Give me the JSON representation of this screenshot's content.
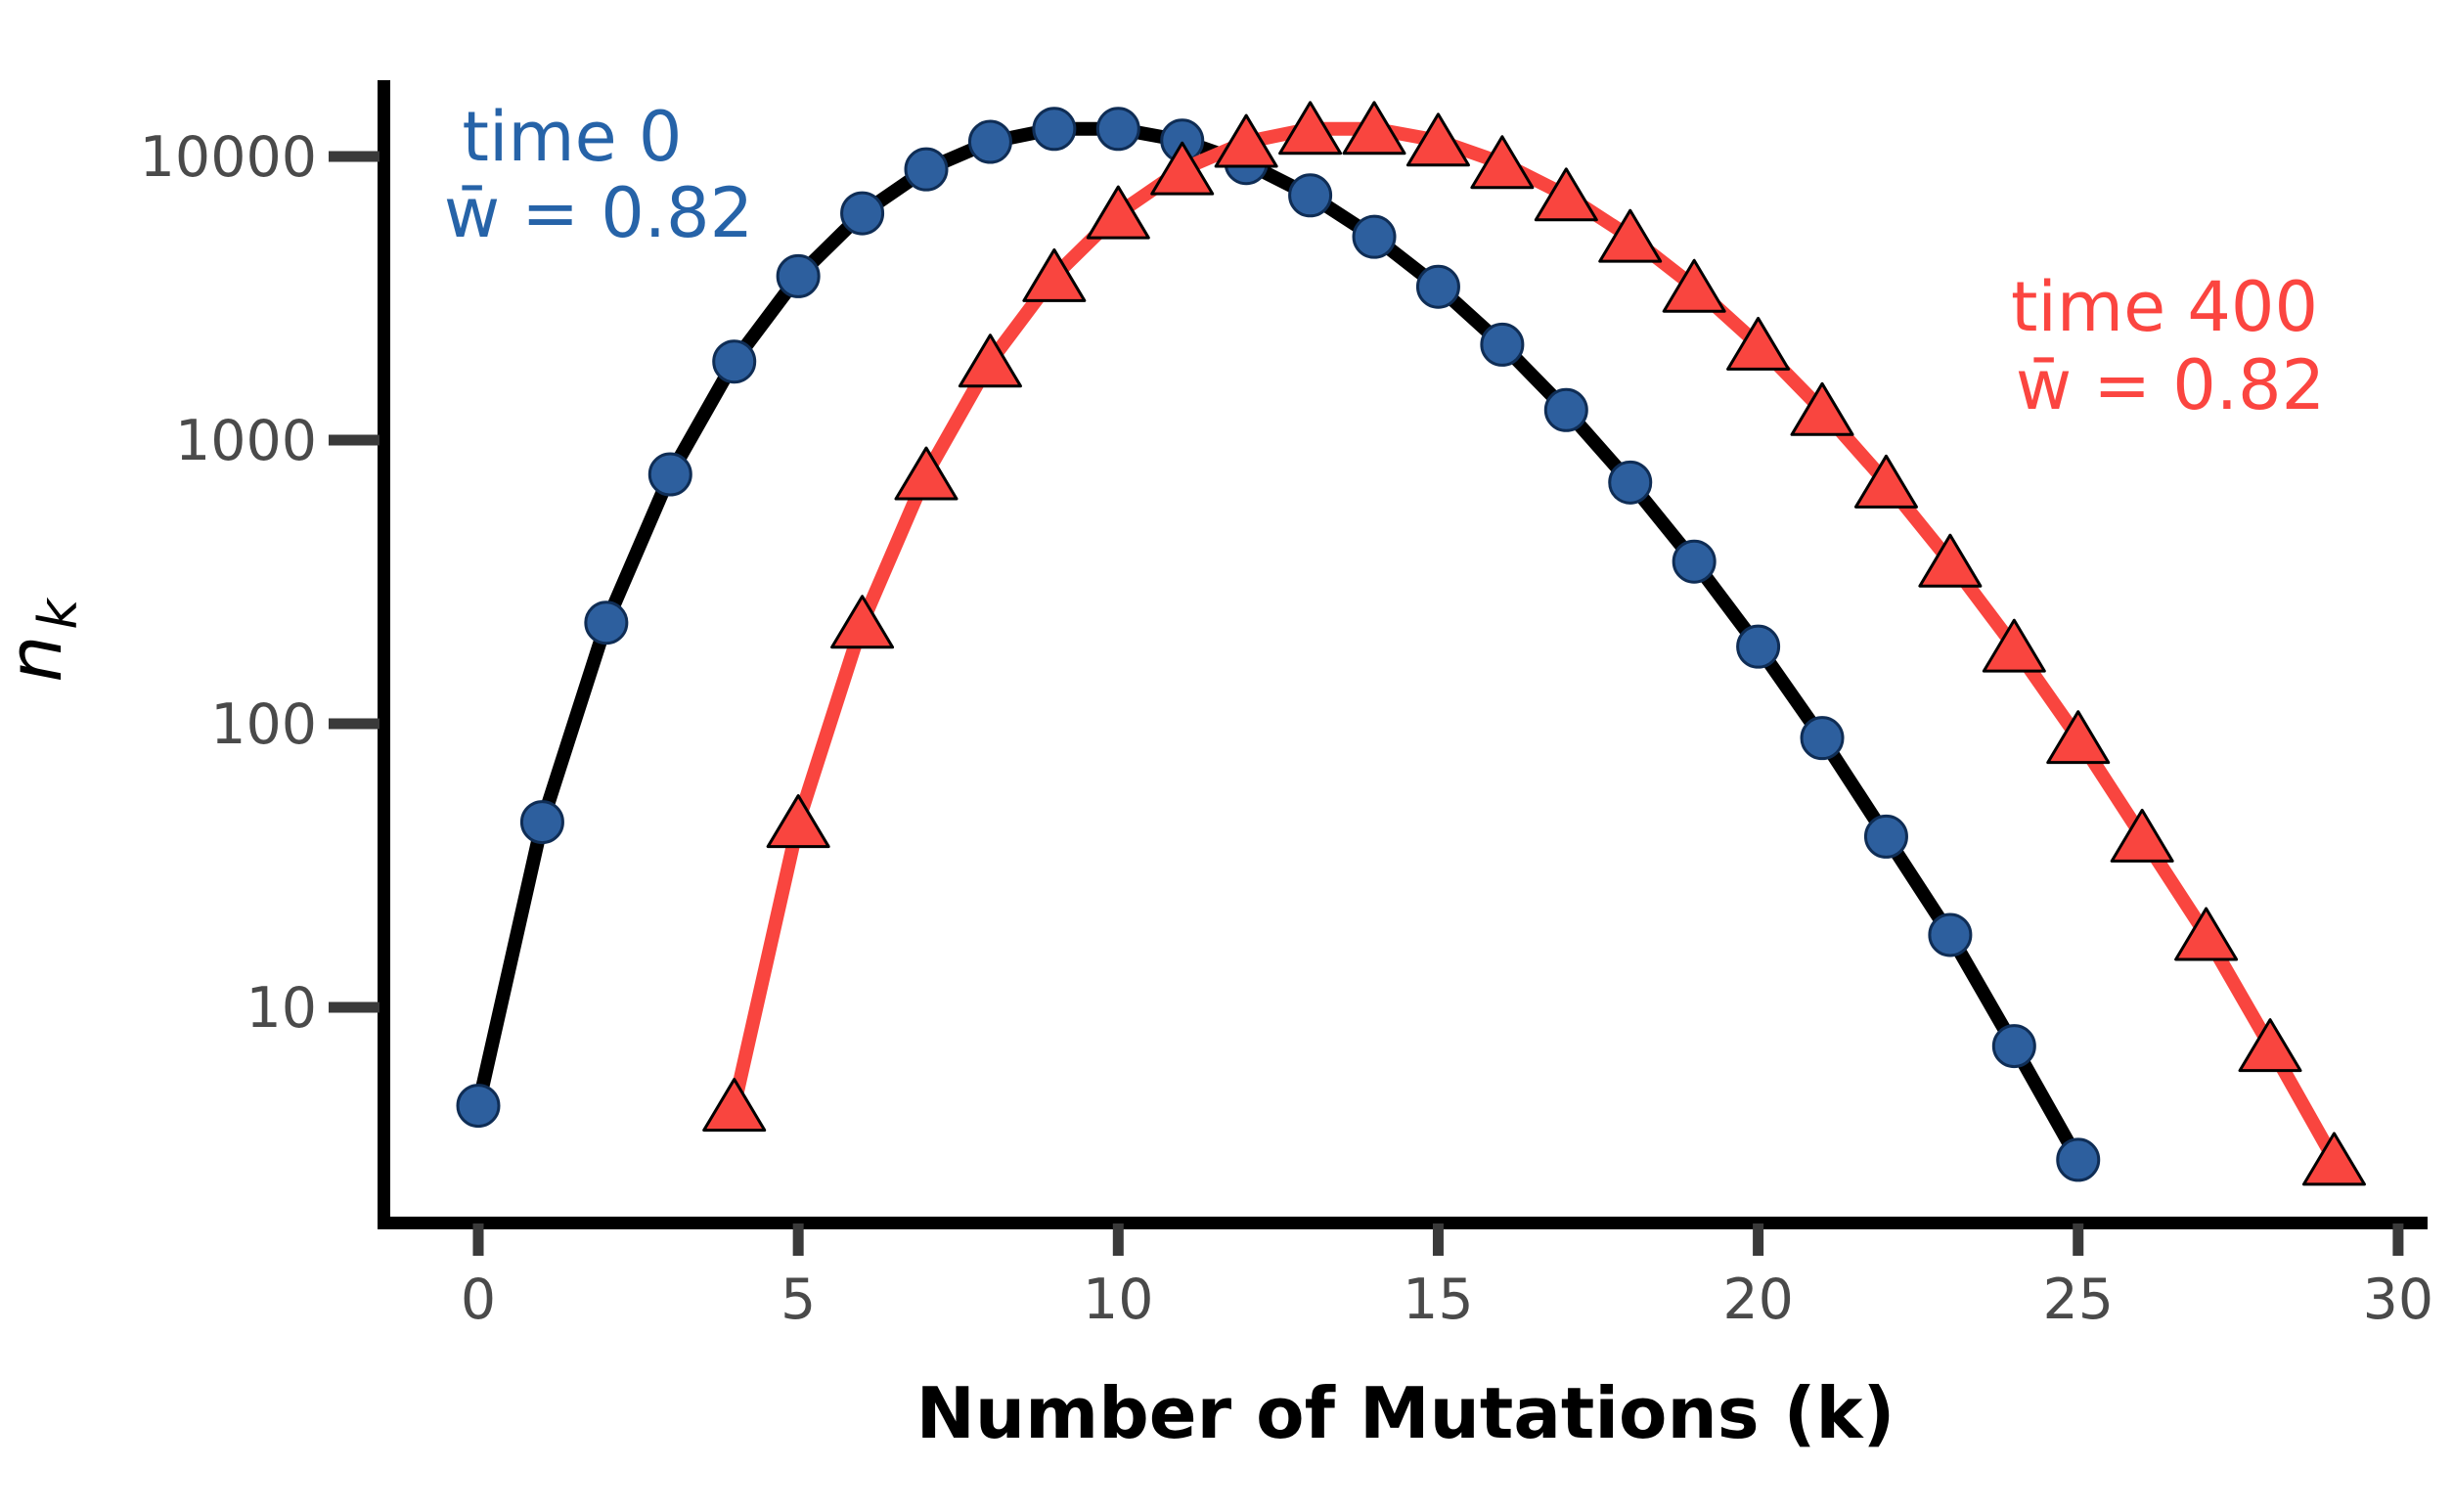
{
  "figure": {
    "background": "#ffffff",
    "spine_color": "#000000",
    "tick_color": "#3a3a3a",
    "tick_label_color": "#4a4a4a"
  },
  "chart_data": {
    "type": "line",
    "title": "",
    "xlabel": "Number of Mutations (k)",
    "ylabel": {
      "main": "n",
      "sub": "k"
    },
    "y_scale": "log",
    "grid": false,
    "legend_position": "none",
    "x_ticks": [
      0,
      5,
      10,
      15,
      20,
      25,
      30
    ],
    "x_tick_labels": [
      "0",
      "5",
      "10",
      "15",
      "20",
      "25",
      "30"
    ],
    "y_ticks": [
      10,
      100,
      1000,
      10000
    ],
    "y_tick_labels": [
      "10",
      "100",
      "1000",
      "10000"
    ],
    "xlim": [
      -1.5,
      30.4
    ],
    "ylim": [
      1.7,
      18600
    ],
    "series": [
      {
        "name": "time 0",
        "marker": "circle",
        "marker_fill": "#2d5f9e",
        "marker_stroke": "#0f2d55",
        "line_color": "#000000",
        "x": [
          0,
          1,
          2,
          3,
          4,
          5,
          6,
          7,
          8,
          9,
          10,
          11,
          12,
          13,
          14,
          15,
          16,
          17,
          18,
          19,
          20,
          21,
          22,
          23,
          24,
          25
        ],
        "y": [
          4.5,
          45,
          227,
          757,
          1892,
          3783,
          6306,
          9008,
          11260,
          12511,
          12511,
          11374,
          9478,
          7291,
          5208,
          3472,
          2170,
          1276,
          709,
          373,
          187,
          89,
          40,
          18,
          7.3,
          2.9
        ]
      },
      {
        "name": "time 400",
        "marker": "triangle",
        "marker_fill": "#f9453f",
        "marker_stroke": "#000000",
        "line_color": "#f9453f",
        "x": [
          4,
          5,
          6,
          7,
          8,
          9,
          10,
          11,
          12,
          13,
          14,
          15,
          16,
          17,
          18,
          19,
          20,
          21,
          22,
          23,
          24,
          25,
          26,
          27,
          28,
          29
        ],
        "y": [
          4.5,
          45,
          227,
          757,
          1892,
          3783,
          6306,
          9008,
          11260,
          12511,
          12511,
          11374,
          9478,
          7291,
          5208,
          3472,
          2170,
          1276,
          709,
          373,
          187,
          89,
          40,
          18,
          7.3,
          2.9
        ]
      }
    ],
    "annotations": [
      {
        "lines": [
          "time 0",
          "w̄ = 0.82"
        ],
        "color": "#2663a8"
      },
      {
        "lines": [
          "time 400",
          "w̄ = 0.82"
        ],
        "color": "#fb4540"
      }
    ]
  }
}
